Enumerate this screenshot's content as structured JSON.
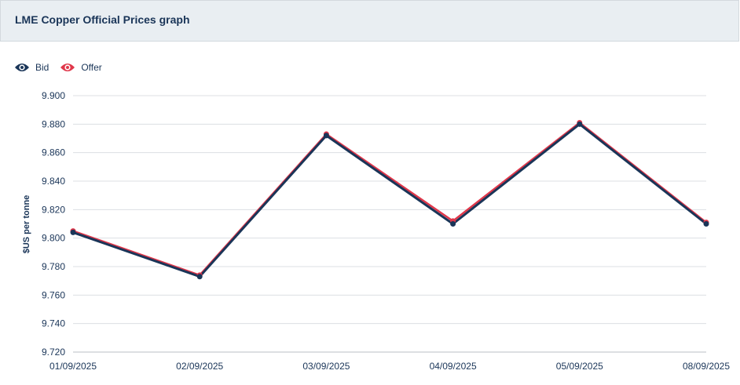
{
  "header": {
    "title": "LME Copper Official Prices graph"
  },
  "colors": {
    "bid": "#1a3558",
    "offer": "#e0374a"
  },
  "chart_data": {
    "type": "line",
    "title": "",
    "xlabel": "",
    "ylabel": "$US per tonne",
    "categories": [
      "01/09/2025",
      "02/09/2025",
      "03/09/2025",
      "04/09/2025",
      "05/09/2025",
      "08/09/2025"
    ],
    "ylim": [
      9720,
      9900
    ],
    "yticks": [
      "9.720",
      "9.740",
      "9.760",
      "9.780",
      "9.800",
      "9.820",
      "9.840",
      "9.860",
      "9.880",
      "9.900"
    ],
    "grid": true,
    "legend": "top-left",
    "series": [
      {
        "name": "Bid",
        "values": [
          9804,
          9773,
          9872,
          9810,
          9880,
          9810
        ]
      },
      {
        "name": "Offer",
        "values": [
          9805,
          9774,
          9873,
          9812,
          9881,
          9811
        ]
      }
    ]
  }
}
